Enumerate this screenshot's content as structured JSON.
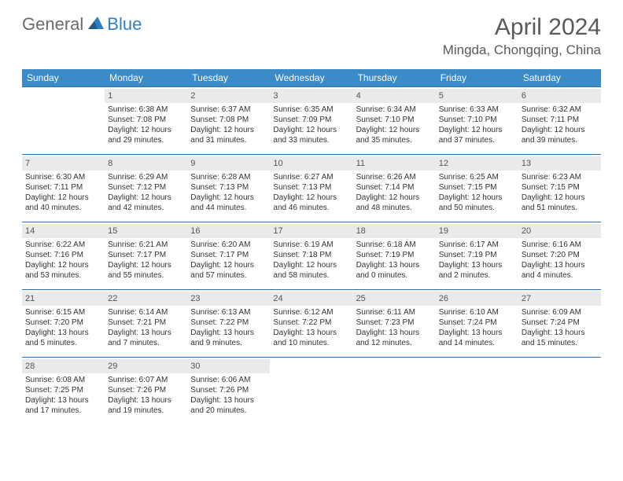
{
  "brand": {
    "part1": "General",
    "part2": "Blue"
  },
  "title": "April 2024",
  "location": "Mingda, Chongqing, China",
  "header_bg": "#3b8bc8",
  "row_border": "#2f6fa8",
  "daynum_bg": "#eaeaea",
  "weekdays": [
    "Sunday",
    "Monday",
    "Tuesday",
    "Wednesday",
    "Thursday",
    "Friday",
    "Saturday"
  ],
  "weeks": [
    [
      {
        "empty": true
      },
      {
        "n": "1",
        "sr": "Sunrise: 6:38 AM",
        "ss": "Sunset: 7:08 PM",
        "d1": "Daylight: 12 hours",
        "d2": "and 29 minutes."
      },
      {
        "n": "2",
        "sr": "Sunrise: 6:37 AM",
        "ss": "Sunset: 7:08 PM",
        "d1": "Daylight: 12 hours",
        "d2": "and 31 minutes."
      },
      {
        "n": "3",
        "sr": "Sunrise: 6:35 AM",
        "ss": "Sunset: 7:09 PM",
        "d1": "Daylight: 12 hours",
        "d2": "and 33 minutes."
      },
      {
        "n": "4",
        "sr": "Sunrise: 6:34 AM",
        "ss": "Sunset: 7:10 PM",
        "d1": "Daylight: 12 hours",
        "d2": "and 35 minutes."
      },
      {
        "n": "5",
        "sr": "Sunrise: 6:33 AM",
        "ss": "Sunset: 7:10 PM",
        "d1": "Daylight: 12 hours",
        "d2": "and 37 minutes."
      },
      {
        "n": "6",
        "sr": "Sunrise: 6:32 AM",
        "ss": "Sunset: 7:11 PM",
        "d1": "Daylight: 12 hours",
        "d2": "and 39 minutes."
      }
    ],
    [
      {
        "n": "7",
        "sr": "Sunrise: 6:30 AM",
        "ss": "Sunset: 7:11 PM",
        "d1": "Daylight: 12 hours",
        "d2": "and 40 minutes."
      },
      {
        "n": "8",
        "sr": "Sunrise: 6:29 AM",
        "ss": "Sunset: 7:12 PM",
        "d1": "Daylight: 12 hours",
        "d2": "and 42 minutes."
      },
      {
        "n": "9",
        "sr": "Sunrise: 6:28 AM",
        "ss": "Sunset: 7:13 PM",
        "d1": "Daylight: 12 hours",
        "d2": "and 44 minutes."
      },
      {
        "n": "10",
        "sr": "Sunrise: 6:27 AM",
        "ss": "Sunset: 7:13 PM",
        "d1": "Daylight: 12 hours",
        "d2": "and 46 minutes."
      },
      {
        "n": "11",
        "sr": "Sunrise: 6:26 AM",
        "ss": "Sunset: 7:14 PM",
        "d1": "Daylight: 12 hours",
        "d2": "and 48 minutes."
      },
      {
        "n": "12",
        "sr": "Sunrise: 6:25 AM",
        "ss": "Sunset: 7:15 PM",
        "d1": "Daylight: 12 hours",
        "d2": "and 50 minutes."
      },
      {
        "n": "13",
        "sr": "Sunrise: 6:23 AM",
        "ss": "Sunset: 7:15 PM",
        "d1": "Daylight: 12 hours",
        "d2": "and 51 minutes."
      }
    ],
    [
      {
        "n": "14",
        "sr": "Sunrise: 6:22 AM",
        "ss": "Sunset: 7:16 PM",
        "d1": "Daylight: 12 hours",
        "d2": "and 53 minutes."
      },
      {
        "n": "15",
        "sr": "Sunrise: 6:21 AM",
        "ss": "Sunset: 7:17 PM",
        "d1": "Daylight: 12 hours",
        "d2": "and 55 minutes."
      },
      {
        "n": "16",
        "sr": "Sunrise: 6:20 AM",
        "ss": "Sunset: 7:17 PM",
        "d1": "Daylight: 12 hours",
        "d2": "and 57 minutes."
      },
      {
        "n": "17",
        "sr": "Sunrise: 6:19 AM",
        "ss": "Sunset: 7:18 PM",
        "d1": "Daylight: 12 hours",
        "d2": "and 58 minutes."
      },
      {
        "n": "18",
        "sr": "Sunrise: 6:18 AM",
        "ss": "Sunset: 7:19 PM",
        "d1": "Daylight: 13 hours",
        "d2": "and 0 minutes."
      },
      {
        "n": "19",
        "sr": "Sunrise: 6:17 AM",
        "ss": "Sunset: 7:19 PM",
        "d1": "Daylight: 13 hours",
        "d2": "and 2 minutes."
      },
      {
        "n": "20",
        "sr": "Sunrise: 6:16 AM",
        "ss": "Sunset: 7:20 PM",
        "d1": "Daylight: 13 hours",
        "d2": "and 4 minutes."
      }
    ],
    [
      {
        "n": "21",
        "sr": "Sunrise: 6:15 AM",
        "ss": "Sunset: 7:20 PM",
        "d1": "Daylight: 13 hours",
        "d2": "and 5 minutes."
      },
      {
        "n": "22",
        "sr": "Sunrise: 6:14 AM",
        "ss": "Sunset: 7:21 PM",
        "d1": "Daylight: 13 hours",
        "d2": "and 7 minutes."
      },
      {
        "n": "23",
        "sr": "Sunrise: 6:13 AM",
        "ss": "Sunset: 7:22 PM",
        "d1": "Daylight: 13 hours",
        "d2": "and 9 minutes."
      },
      {
        "n": "24",
        "sr": "Sunrise: 6:12 AM",
        "ss": "Sunset: 7:22 PM",
        "d1": "Daylight: 13 hours",
        "d2": "and 10 minutes."
      },
      {
        "n": "25",
        "sr": "Sunrise: 6:11 AM",
        "ss": "Sunset: 7:23 PM",
        "d1": "Daylight: 13 hours",
        "d2": "and 12 minutes."
      },
      {
        "n": "26",
        "sr": "Sunrise: 6:10 AM",
        "ss": "Sunset: 7:24 PM",
        "d1": "Daylight: 13 hours",
        "d2": "and 14 minutes."
      },
      {
        "n": "27",
        "sr": "Sunrise: 6:09 AM",
        "ss": "Sunset: 7:24 PM",
        "d1": "Daylight: 13 hours",
        "d2": "and 15 minutes."
      }
    ],
    [
      {
        "n": "28",
        "sr": "Sunrise: 6:08 AM",
        "ss": "Sunset: 7:25 PM",
        "d1": "Daylight: 13 hours",
        "d2": "and 17 minutes."
      },
      {
        "n": "29",
        "sr": "Sunrise: 6:07 AM",
        "ss": "Sunset: 7:26 PM",
        "d1": "Daylight: 13 hours",
        "d2": "and 19 minutes."
      },
      {
        "n": "30",
        "sr": "Sunrise: 6:06 AM",
        "ss": "Sunset: 7:26 PM",
        "d1": "Daylight: 13 hours",
        "d2": "and 20 minutes."
      },
      {
        "empty": true
      },
      {
        "empty": true
      },
      {
        "empty": true
      },
      {
        "empty": true
      }
    ]
  ]
}
